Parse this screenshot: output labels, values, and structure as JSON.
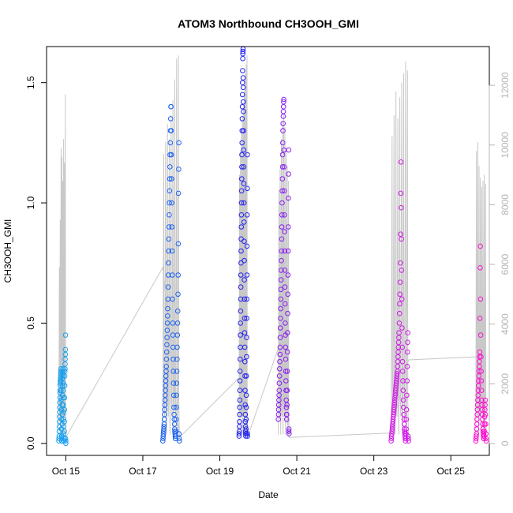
{
  "chart_data": {
    "type": "scatter",
    "title": "ATOM3 Northbound CH3OOH_GMI",
    "xlabel": "Date",
    "ylabel": "CH3OOH_GMI",
    "ylabel_right": "",
    "x_ticks": [
      "Oct 15",
      "Oct 17",
      "Oct 19",
      "Oct 21",
      "Oct 23",
      "Oct 25"
    ],
    "x_tick_values": [
      14.9,
      16.9,
      18.9,
      20.9,
      22.9,
      24.9
    ],
    "xlim": [
      14.4,
      25.9
    ],
    "y_ticks": [
      "0.0",
      "0.5",
      "1.0",
      "1.5"
    ],
    "y_tick_values": [
      0.0,
      0.5,
      1.0,
      1.5
    ],
    "ylim": [
      -0.05,
      1.65
    ],
    "y2_ticks": [
      "0",
      "2000",
      "4000",
      "6000",
      "8000",
      "10000",
      "12000"
    ],
    "y2_tick_values": [
      0,
      2000,
      4000,
      6000,
      8000,
      10000,
      12000
    ],
    "y2lim": [
      -400,
      13300
    ],
    "grid": false,
    "colors": {
      "points_start": "#1aa0ef",
      "points_mid": "#2323f0",
      "points_mid2": "#8a1ff0",
      "points_end": "#ff10d0",
      "altitude_line": "#c8c8c8"
    },
    "flights": [
      {
        "name": "Oct 15",
        "x_start": 14.72,
        "x_end": 14.9,
        "point_color": "#1aa0ef",
        "values": [
          0.01,
          0.02,
          0.03,
          0.05,
          0.07,
          0.09,
          0.11,
          0.13,
          0.15,
          0.17,
          0.19,
          0.21,
          0.22,
          0.24,
          0.25,
          0.26,
          0.27,
          0.28,
          0.29,
          0.3,
          0.31,
          0.26,
          0.22,
          0.18,
          0.14,
          0.1,
          0.06,
          0.03,
          0.02,
          0.01,
          0.01,
          0.03,
          0.08,
          0.12,
          0.16,
          0.2,
          0.24,
          0.27,
          0.29,
          0.3,
          0.31,
          0.28,
          0.25,
          0.22,
          0.19,
          0.16,
          0.13,
          0.1,
          0.07,
          0.04,
          0.02,
          0.01,
          0.01,
          0.02,
          0.05,
          0.09,
          0.14,
          0.19,
          0.24,
          0.28,
          0.3,
          0.31,
          0.33,
          0.35,
          0.37,
          0.39,
          0.45,
          0.02,
          0.01,
          0.0
        ],
        "altitude_peaks": [
          5900,
          7500,
          9900,
          9600,
          8800,
          10200,
          9400,
          11700
        ]
      },
      {
        "name": "Oct 17",
        "x_start": 17.42,
        "x_end": 17.85,
        "point_color": "#1f64f0",
        "values": [
          0.01,
          0.02,
          0.03,
          0.04,
          0.05,
          0.06,
          0.07,
          0.08,
          0.1,
          0.12,
          0.14,
          0.16,
          0.18,
          0.2,
          0.22,
          0.24,
          0.26,
          0.28,
          0.3,
          0.32,
          0.35,
          0.38,
          0.41,
          0.44,
          0.47,
          0.5,
          0.53,
          0.56,
          0.6,
          0.65,
          0.7,
          0.75,
          0.8,
          0.85,
          0.9,
          0.95,
          1.0,
          1.05,
          1.1,
          1.15,
          1.2,
          1.25,
          1.3,
          1.35,
          1.4,
          1.4,
          1.3,
          1.2,
          1.1,
          1.0,
          0.9,
          0.8,
          0.7,
          0.6,
          0.5,
          0.45,
          0.4,
          0.35,
          0.3,
          0.25,
          0.2,
          0.15,
          0.12,
          0.1,
          0.08,
          0.06,
          0.05,
          0.04,
          0.03,
          0.02,
          0.02,
          0.03,
          0.05,
          0.1,
          0.15,
          0.2,
          0.25,
          0.3,
          0.35,
          0.4,
          0.45,
          0.5,
          0.55,
          0.62,
          0.7,
          0.83,
          1.04,
          1.14,
          1.25,
          0.04,
          0.02,
          0.01
        ],
        "altitude_peaks": [
          9700,
          10100,
          10700,
          10200,
          11000,
          11500,
          12200,
          12900,
          13000
        ]
      },
      {
        "name": "Oct 19",
        "x_start": 19.4,
        "x_end": 19.62,
        "point_color": "#2323f0",
        "values": [
          0.03,
          0.04,
          0.05,
          0.07,
          0.09,
          0.12,
          0.15,
          0.18,
          0.22,
          0.26,
          0.3,
          0.35,
          0.4,
          0.45,
          0.5,
          0.55,
          0.6,
          0.65,
          0.7,
          0.75,
          0.8,
          0.85,
          0.9,
          0.95,
          1.0,
          1.05,
          1.1,
          1.15,
          1.2,
          1.25,
          1.3,
          1.35,
          1.4,
          1.45,
          1.5,
          1.55,
          1.6,
          1.62,
          1.63,
          1.64,
          1.52,
          1.48,
          1.42,
          1.38,
          1.3,
          1.22,
          1.15,
          1.08,
          1.0,
          0.92,
          0.84,
          0.76,
          0.68,
          0.6,
          0.52,
          0.46,
          0.4,
          0.34,
          0.28,
          0.22,
          0.16,
          0.12,
          0.09,
          0.07,
          0.05,
          0.04,
          0.03,
          0.04,
          0.06,
          0.1,
          0.15,
          0.2,
          0.28,
          0.36,
          0.44,
          0.52,
          0.6,
          0.7,
          0.82,
          0.95,
          1.06,
          1.2,
          0.04,
          0.03
        ],
        "altitude_peaks": [
          9000,
          9800,
          10500,
          10900,
          11300,
          11800,
          12400,
          12700,
          13000
        ]
      },
      {
        "name": "Oct 21",
        "x_start": 20.42,
        "x_end": 20.7,
        "point_color": "#8a1ff0",
        "values": [
          0.1,
          0.12,
          0.14,
          0.16,
          0.18,
          0.2,
          0.22,
          0.25,
          0.28,
          0.31,
          0.34,
          0.37,
          0.4,
          0.44,
          0.48,
          0.52,
          0.56,
          0.6,
          0.64,
          0.68,
          0.72,
          0.76,
          0.8,
          0.85,
          0.9,
          0.95,
          1.0,
          1.05,
          1.1,
          1.15,
          1.2,
          1.25,
          1.3,
          1.33,
          1.36,
          1.38,
          1.4,
          1.42,
          1.43,
          1.22,
          1.15,
          1.05,
          0.95,
          0.88,
          0.8,
          0.72,
          0.65,
          0.58,
          0.5,
          0.45,
          0.4,
          0.35,
          0.3,
          0.26,
          0.22,
          0.18,
          0.15,
          0.12,
          0.1,
          0.12,
          0.16,
          0.22,
          0.3,
          0.38,
          0.46,
          0.54,
          0.62,
          0.7,
          0.8,
          0.9,
          1.02,
          1.12,
          1.22,
          0.05,
          0.06,
          0.04
        ],
        "altitude_peaks": [
          8500,
          9200,
          10200,
          10800,
          11000,
          10600,
          9800,
          9300,
          8800
        ]
      },
      {
        "name": "Oct 23",
        "x_start": 23.35,
        "x_end": 23.8,
        "point_color": "#d21be8",
        "values": [
          0.01,
          0.02,
          0.03,
          0.04,
          0.05,
          0.06,
          0.07,
          0.08,
          0.09,
          0.1,
          0.11,
          0.12,
          0.13,
          0.14,
          0.15,
          0.16,
          0.17,
          0.18,
          0.19,
          0.2,
          0.21,
          0.22,
          0.23,
          0.24,
          0.25,
          0.26,
          0.27,
          0.28,
          0.29,
          0.3,
          0.32,
          0.34,
          0.36,
          0.38,
          0.4,
          0.42,
          0.44,
          0.46,
          0.5,
          0.54,
          0.58,
          0.62,
          0.67,
          0.75,
          0.87,
          1.04,
          1.17,
          0.98,
          0.85,
          0.72,
          0.6,
          0.48,
          0.4,
          0.34,
          0.3,
          0.26,
          0.22,
          0.18,
          0.15,
          0.12,
          0.1,
          0.08,
          0.06,
          0.05,
          0.04,
          0.03,
          0.02,
          0.01,
          0.02,
          0.04,
          0.06,
          0.1,
          0.14,
          0.2,
          0.26,
          0.32,
          0.38,
          0.42,
          0.46,
          0.03,
          0.02,
          0.01
        ],
        "altitude_peaks": [
          10300,
          11000,
          11800,
          10900,
          11600,
          12100,
          12400,
          12800,
          12500
        ]
      },
      {
        "name": "Oct 25",
        "x_start": 25.55,
        "x_end": 25.82,
        "point_color": "#ff10d0",
        "values": [
          0.01,
          0.02,
          0.03,
          0.04,
          0.06,
          0.08,
          0.1,
          0.12,
          0.14,
          0.16,
          0.18,
          0.2,
          0.22,
          0.24,
          0.26,
          0.28,
          0.3,
          0.32,
          0.34,
          0.36,
          0.38,
          0.52,
          0.73,
          0.82,
          0.6,
          0.45,
          0.36,
          0.3,
          0.26,
          0.22,
          0.18,
          0.16,
          0.14,
          0.12,
          0.1,
          0.08,
          0.06,
          0.05,
          0.04,
          0.03,
          0.02,
          0.02,
          0.03,
          0.05,
          0.08,
          0.11,
          0.14,
          0.16,
          0.18,
          0.12,
          0.08,
          0.04,
          0.02,
          0.01
        ],
        "altitude_peaks": [
          9800,
          10100,
          9300,
          8900,
          8600,
          8800,
          9000,
          8700
        ]
      }
    ],
    "altitude_connector": [
      [
        14.9,
        200
      ],
      [
        17.42,
        5900
      ],
      [
        17.85,
        200
      ],
      [
        19.4,
        2200
      ],
      [
        19.62,
        200
      ],
      [
        20.42,
        3200
      ],
      [
        20.7,
        200
      ],
      [
        23.35,
        350
      ],
      [
        23.8,
        2800
      ],
      [
        25.55,
        2900
      ],
      [
        25.82,
        200
      ]
    ]
  }
}
